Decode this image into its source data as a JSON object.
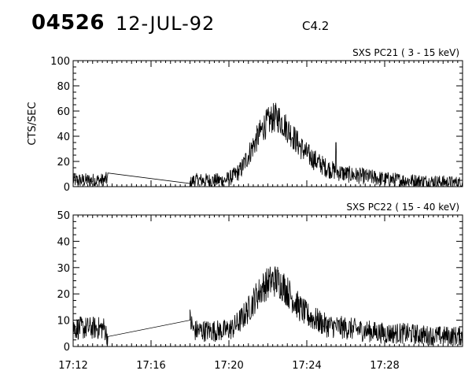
{
  "header": {
    "event_id": "04526",
    "date": "12-JUL-92",
    "flare_class": "C4.2"
  },
  "chart_data": [
    {
      "type": "line",
      "title": "SXS PC21  (  3 - 15 keV)",
      "ylabel": "CTS/SEC",
      "xlabel": "",
      "x_unit": "minutes after 17:12 UT",
      "xlim": [
        0,
        20
      ],
      "ylim": [
        0,
        100
      ],
      "yticks": [
        0,
        20,
        40,
        60,
        80,
        100
      ],
      "xticks": [
        "17:12",
        "17:16",
        "17:20",
        "17:24",
        "17:28"
      ],
      "noise": 5,
      "points": [
        [
          0.0,
          5
        ],
        [
          1.6,
          5
        ],
        [
          1.8,
          6.5
        ],
        [
          6.0,
          2.5
        ],
        [
          6.2,
          5
        ],
        [
          7.8,
          5
        ],
        [
          8.2,
          8
        ],
        [
          8.6,
          13
        ],
        [
          9.0,
          25
        ],
        [
          9.4,
          37
        ],
        [
          9.8,
          48
        ],
        [
          10.2,
          54
        ],
        [
          10.5,
          55
        ],
        [
          10.8,
          50
        ],
        [
          11.2,
          42
        ],
        [
          11.6,
          33
        ],
        [
          12.0,
          26
        ],
        [
          12.5,
          20
        ],
        [
          13.0,
          15
        ],
        [
          13.5,
          12
        ],
        [
          14.0,
          10
        ],
        [
          15.0,
          8
        ],
        [
          16.0,
          6
        ],
        [
          17.0,
          5
        ],
        [
          18.5,
          4
        ],
        [
          20.0,
          3
        ]
      ],
      "gap": [
        1.8,
        6.0
      ],
      "spikes": [
        [
          13.5,
          35
        ]
      ]
    },
    {
      "type": "line",
      "title": "SXS PC22  ( 15 - 40 keV)",
      "ylabel": "",
      "xlabel": "",
      "x_unit": "minutes after 17:12 UT",
      "xlim": [
        0,
        20
      ],
      "ylim": [
        0,
        50
      ],
      "yticks": [
        0,
        10,
        20,
        30,
        40,
        50
      ],
      "xticks": [
        "17:12",
        "17:16",
        "17:20",
        "17:24",
        "17:28"
      ],
      "noise": 3.5,
      "points": [
        [
          0.0,
          7
        ],
        [
          1.6,
          7
        ],
        [
          1.8,
          3
        ],
        [
          6.0,
          10
        ],
        [
          6.2,
          6
        ],
        [
          7.8,
          6
        ],
        [
          8.2,
          7
        ],
        [
          8.6,
          10
        ],
        [
          9.0,
          14
        ],
        [
          9.4,
          19
        ],
        [
          9.8,
          23
        ],
        [
          10.2,
          25
        ],
        [
          10.5,
          25
        ],
        [
          10.8,
          23
        ],
        [
          11.2,
          19
        ],
        [
          11.6,
          15
        ],
        [
          12.0,
          12
        ],
        [
          12.5,
          10
        ],
        [
          13.0,
          8
        ],
        [
          14.0,
          7
        ],
        [
          15.0,
          6
        ],
        [
          16.0,
          5
        ],
        [
          17.0,
          5
        ],
        [
          18.5,
          4
        ],
        [
          20.0,
          4
        ]
      ],
      "gap": [
        1.8,
        6.0
      ],
      "spikes": []
    }
  ]
}
